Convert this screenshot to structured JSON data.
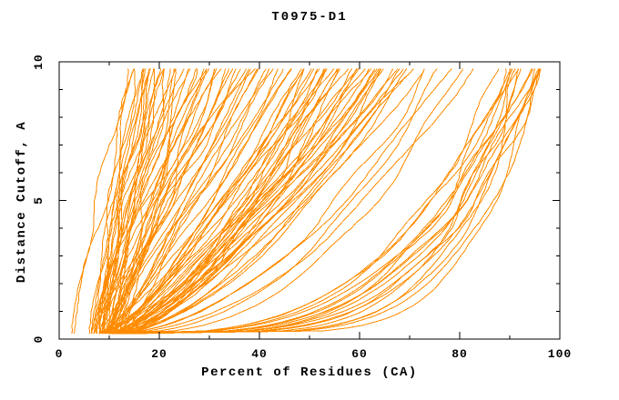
{
  "chart_data": {
    "type": "line",
    "title": "T0975-D1",
    "xlabel": "Percent of Residues (CA)",
    "ylabel": "Distance Cutoff, A",
    "xlim": [
      0,
      100
    ],
    "ylim": [
      0,
      10
    ],
    "x_major_ticks": [
      0,
      20,
      40,
      60,
      80,
      100
    ],
    "x_minor_step": 10,
    "y_major_ticks": [
      0,
      5,
      10
    ],
    "y_minor_step": 1,
    "grid": false,
    "legend": "none",
    "line_color": "#ff8c00",
    "axis_color": "#000000",
    "background_color": "#ffffff",
    "n_curves": 114,
    "curve_model": "x(y) = x0 + (xf - x0) * ((y - y_start)/(y_end - y_start))^p ; one curve per predicted model, x = percent of CA residues within distance cutoff y",
    "y_start": 0.2,
    "y_end": 9.75,
    "seed": 11,
    "curves": [
      [
        2.5,
        14,
        1.2
      ],
      [
        6.5,
        14.5,
        1.0
      ],
      [
        8,
        15,
        1.3
      ],
      [
        3,
        15.5,
        1.15
      ],
      [
        7,
        16,
        0.95
      ],
      [
        9.5,
        16.5,
        1.5
      ],
      [
        8.5,
        17,
        1.1
      ],
      [
        10,
        17.5,
        1.4
      ],
      [
        7.5,
        18,
        1.2
      ],
      [
        11,
        18.5,
        1.0
      ],
      [
        9,
        19,
        1.6
      ],
      [
        6,
        19.5,
        1.25
      ],
      [
        8,
        20,
        0.9
      ],
      [
        10.5,
        20.5,
        1.3
      ],
      [
        7,
        21,
        1.1
      ],
      [
        9,
        21.5,
        1.45
      ],
      [
        11.5,
        22,
        1.0
      ],
      [
        8.5,
        22.5,
        1.2
      ],
      [
        6.5,
        23,
        1.5
      ],
      [
        10,
        24,
        1.1
      ],
      [
        12,
        24.5,
        0.95
      ],
      [
        7.5,
        25,
        1.3
      ],
      [
        9.5,
        25.5,
        1.15
      ],
      [
        8,
        26,
        1.4
      ],
      [
        11,
        27,
        1.0
      ],
      [
        6.5,
        27.5,
        1.2
      ],
      [
        9,
        28,
        0.9
      ],
      [
        10.5,
        29,
        1.35
      ],
      [
        7,
        29.5,
        1.1
      ],
      [
        12.5,
        30,
        1.0
      ],
      [
        8.5,
        30.5,
        1.25
      ],
      [
        9.5,
        31,
        0.95
      ],
      [
        11,
        32,
        1.15
      ],
      [
        7.5,
        33,
        1.3
      ],
      [
        10,
        33.5,
        1.05
      ],
      [
        8,
        34,
        0.9
      ],
      [
        12,
        35,
        1.2
      ],
      [
        9,
        36,
        1.0
      ],
      [
        10.5,
        36.5,
        1.35
      ],
      [
        7,
        37,
        1.1
      ],
      [
        11.5,
        38,
        0.95
      ],
      [
        8.5,
        38.5,
        1.2
      ],
      [
        9.5,
        39,
        1.05
      ],
      [
        13,
        39.5,
        0.9
      ],
      [
        10,
        40,
        1.15
      ],
      [
        9,
        41,
        0.85
      ],
      [
        11,
        42,
        1.0
      ],
      [
        10,
        43,
        0.9
      ],
      [
        12,
        44,
        0.8
      ],
      [
        9.5,
        45,
        1.05
      ],
      [
        11.5,
        46,
        0.85
      ],
      [
        10.5,
        47,
        0.95
      ],
      [
        12.5,
        48,
        0.8
      ],
      [
        8,
        49,
        0.7
      ],
      [
        10,
        49.5,
        0.8
      ],
      [
        12,
        50,
        0.6
      ],
      [
        9,
        50.5,
        0.75
      ],
      [
        11,
        51,
        0.85
      ],
      [
        13,
        51.5,
        0.65
      ],
      [
        8.5,
        52,
        0.9
      ],
      [
        10.5,
        52.5,
        0.7
      ],
      [
        12.5,
        53,
        0.6
      ],
      [
        9.5,
        53.5,
        0.8
      ],
      [
        11.5,
        54,
        0.72
      ],
      [
        13.5,
        55,
        0.62
      ],
      [
        8,
        55.5,
        0.85
      ],
      [
        10,
        56,
        0.68
      ],
      [
        12,
        56.5,
        0.78
      ],
      [
        9,
        57,
        0.58
      ],
      [
        11,
        58,
        0.88
      ],
      [
        13,
        58.5,
        0.66
      ],
      [
        8.5,
        59,
        0.76
      ],
      [
        10.5,
        60,
        0.6
      ],
      [
        12.5,
        60.5,
        0.82
      ],
      [
        9.5,
        61,
        0.7
      ],
      [
        11.5,
        61.5,
        0.64
      ],
      [
        13.5,
        62,
        0.86
      ],
      [
        8,
        63,
        0.74
      ],
      [
        10,
        63.5,
        0.6
      ],
      [
        12,
        64,
        0.8
      ],
      [
        9,
        65,
        0.68
      ],
      [
        11,
        65.5,
        0.58
      ],
      [
        13,
        66,
        0.78
      ],
      [
        8.5,
        67,
        0.66
      ],
      [
        10.5,
        68,
        0.84
      ],
      [
        12.5,
        68.5,
        0.62
      ],
      [
        9.5,
        69,
        0.72
      ],
      [
        11.5,
        70,
        0.6
      ],
      [
        13.5,
        70.5,
        0.8
      ],
      [
        10,
        71,
        0.68
      ],
      [
        12,
        72,
        0.62
      ],
      [
        10,
        74,
        0.5
      ],
      [
        12,
        76,
        0.45
      ],
      [
        11,
        78,
        0.55
      ],
      [
        13,
        80,
        0.42
      ],
      [
        10.5,
        82,
        0.5
      ],
      [
        11,
        88,
        0.3
      ],
      [
        13,
        89,
        0.25
      ],
      [
        12,
        90,
        0.33
      ],
      [
        14,
        90.5,
        0.2
      ],
      [
        11.5,
        91,
        0.28
      ],
      [
        13.5,
        91.5,
        0.35
      ],
      [
        12.5,
        92,
        0.22
      ],
      [
        14.5,
        92.5,
        0.3
      ],
      [
        11,
        93,
        0.18
      ],
      [
        13,
        93.5,
        0.26
      ],
      [
        12,
        94,
        0.32
      ],
      [
        15,
        94.5,
        0.2
      ],
      [
        11.5,
        95,
        0.28
      ],
      [
        13.5,
        95.3,
        0.16
      ],
      [
        12.5,
        95.8,
        0.24
      ],
      [
        14,
        96.3,
        0.3
      ],
      [
        16,
        96.8,
        0.2
      ],
      [
        12,
        97,
        0.26
      ]
    ]
  }
}
